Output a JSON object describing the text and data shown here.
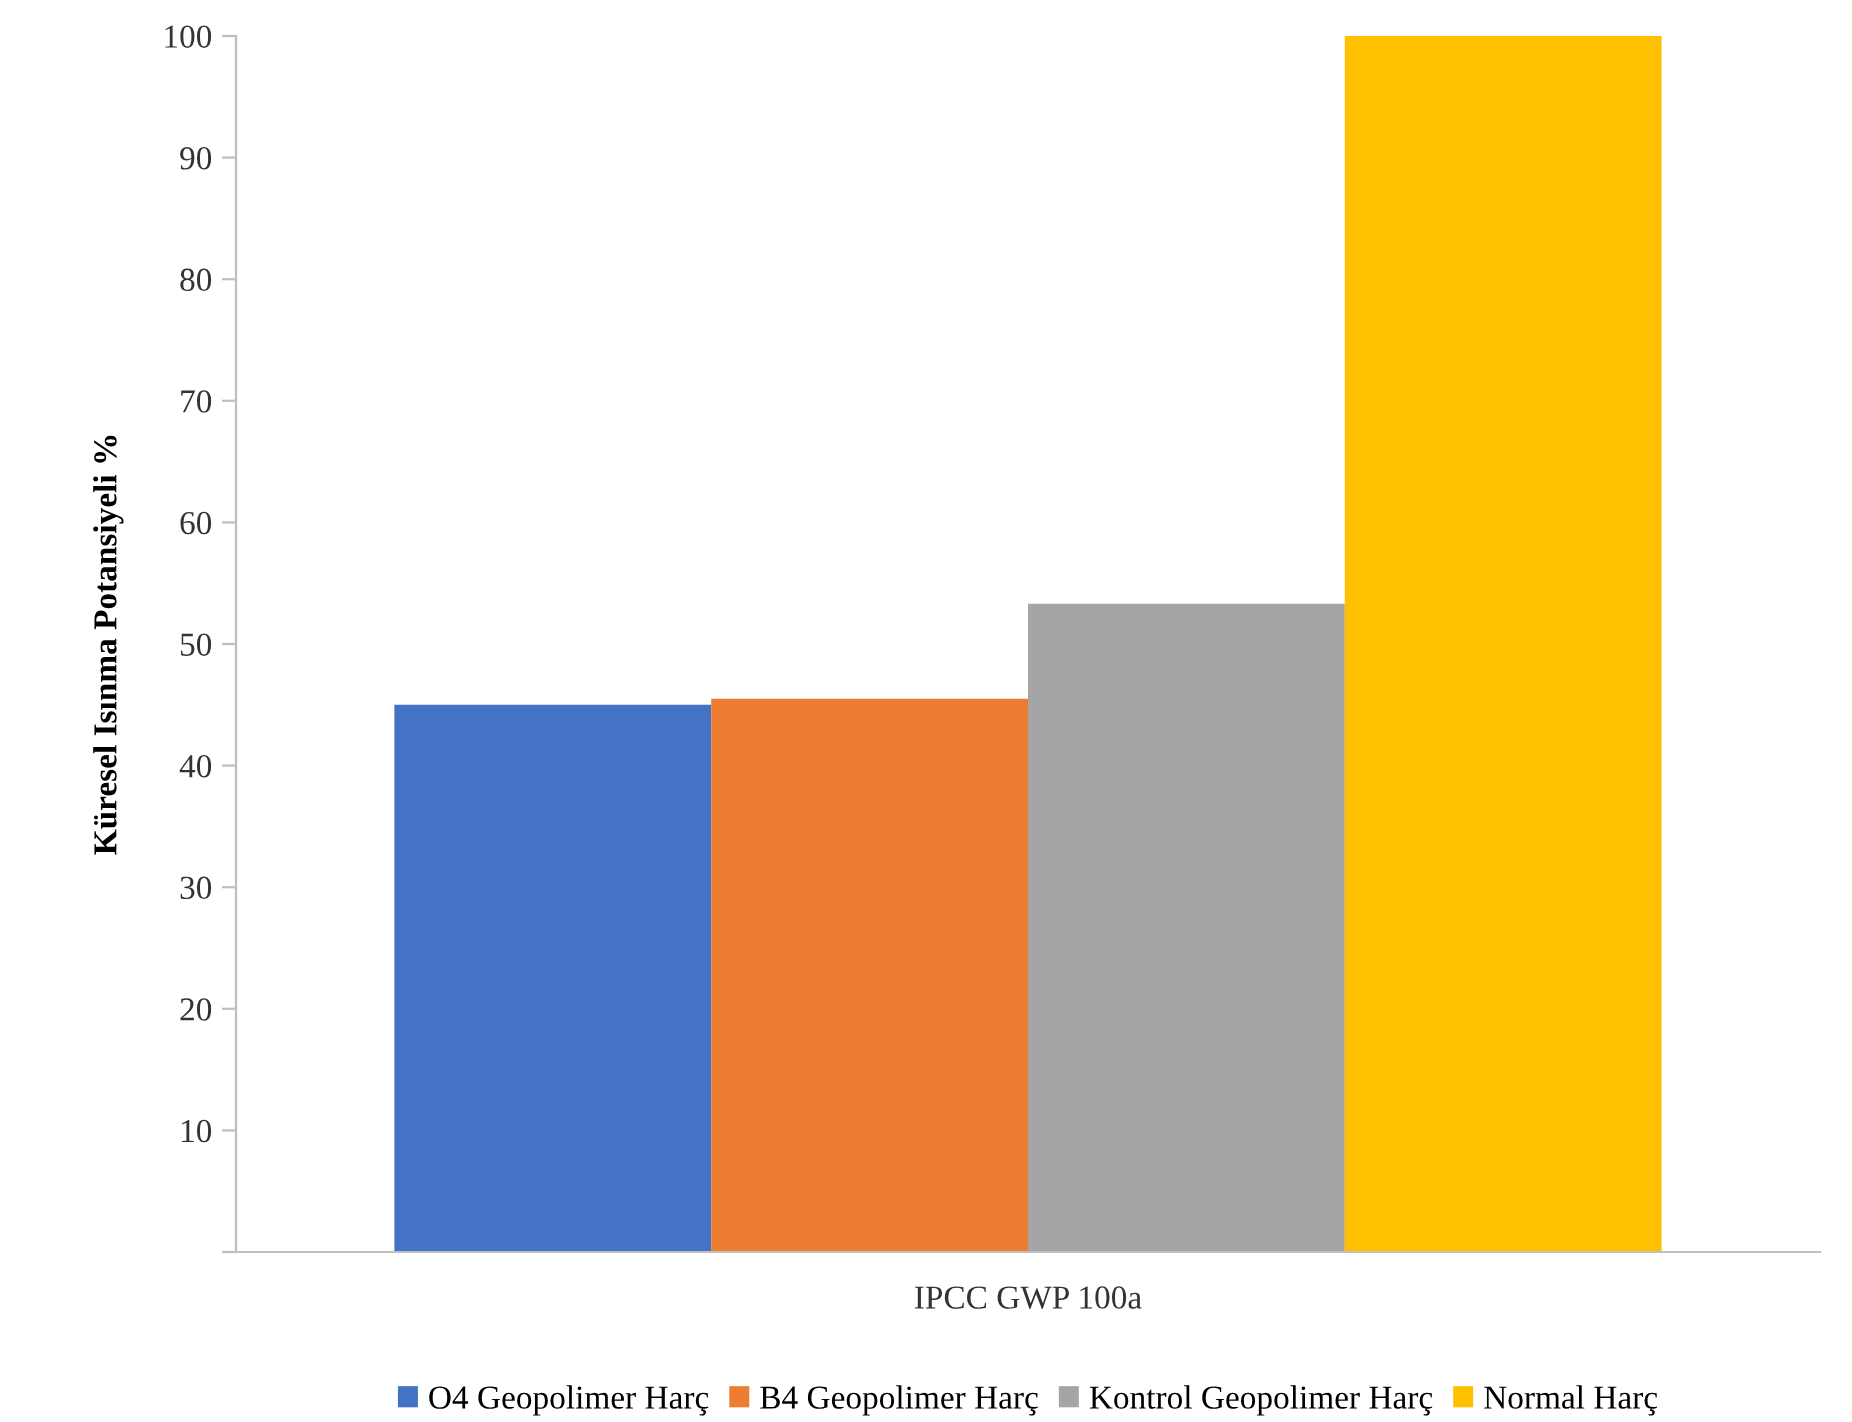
{
  "chart_data": {
    "type": "bar",
    "ylabel": "Küresel Isınma Potansiyeli %",
    "categories": [
      "IPCC GWP 100a"
    ],
    "series": [
      {
        "name": "O4 Geopolimer Harç",
        "color": "#4472c4",
        "values": [
          45
        ]
      },
      {
        "name": "B4 Geopolimer Harç",
        "color": "#ed7d31",
        "values": [
          45.5
        ]
      },
      {
        "name": "Kontrol Geopolimer Harç",
        "color": "#a5a5a5",
        "values": [
          53.3
        ]
      },
      {
        "name": "Normal Harç",
        "color": "#ffc000",
        "values": [
          100
        ]
      }
    ],
    "ylim": [
      0,
      100
    ],
    "yticks": [
      {
        "value": 0,
        "label": null
      },
      10,
      20,
      30,
      40,
      50,
      60,
      70,
      80,
      90,
      100
    ],
    "grid": false,
    "legend": "bottom"
  }
}
